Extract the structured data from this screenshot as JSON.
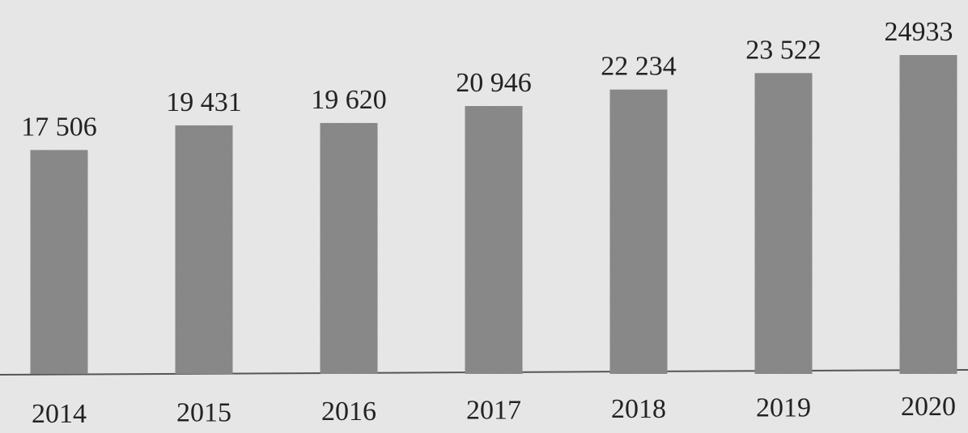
{
  "chart_data": {
    "type": "bar",
    "categories": [
      "2014",
      "2015",
      "2016",
      "2017",
      "2018",
      "2019",
      "2020"
    ],
    "values": [
      17506,
      19431,
      19620,
      20946,
      22234,
      23522,
      24933
    ],
    "value_labels": [
      "17 506",
      "19 431",
      "19 620",
      "20 946",
      "22 234",
      "23 522",
      "24933"
    ],
    "color": "#8c8c8c"
  }
}
